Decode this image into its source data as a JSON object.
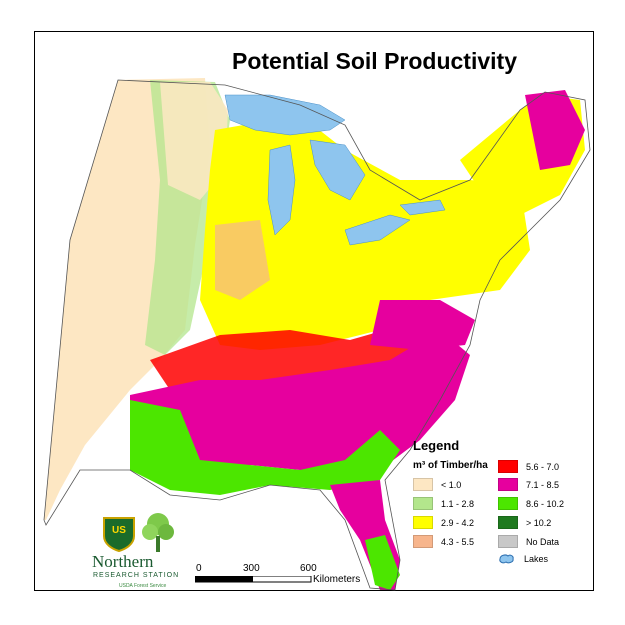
{
  "map": {
    "title": "Potential Soil Productivity"
  },
  "legend": {
    "title": "Legend",
    "subtitle": "m³ of Timber/ha",
    "items": [
      {
        "label": "< 1.0",
        "color": "#fde7c3"
      },
      {
        "label": "1.1 - 2.8",
        "color": "#b3e68c"
      },
      {
        "label": "2.9 - 4.2",
        "color": "#ffff00"
      },
      {
        "label": "4.3 - 5.5",
        "color": "#f7b58c"
      },
      {
        "label": "5.6 - 7.0",
        "color": "#ff0000"
      },
      {
        "label": "7.1 - 8.5",
        "color": "#e6009e"
      },
      {
        "label": "8.6 - 10.2",
        "color": "#4ce600"
      },
      {
        "label": "> 10.2",
        "color": "#1f7a1f"
      },
      {
        "label": "No Data",
        "color": "#c8c8c8"
      },
      {
        "label": "Lakes",
        "color": "#8ec5ee"
      }
    ]
  },
  "scale_bar": {
    "ticks": [
      "0",
      "300",
      "600"
    ],
    "unit": "Kilometers"
  },
  "logo": {
    "shield_text": "US",
    "name": "Northern",
    "station": "RESEARCH STATION",
    "agency": "USDA Forest Service"
  }
}
